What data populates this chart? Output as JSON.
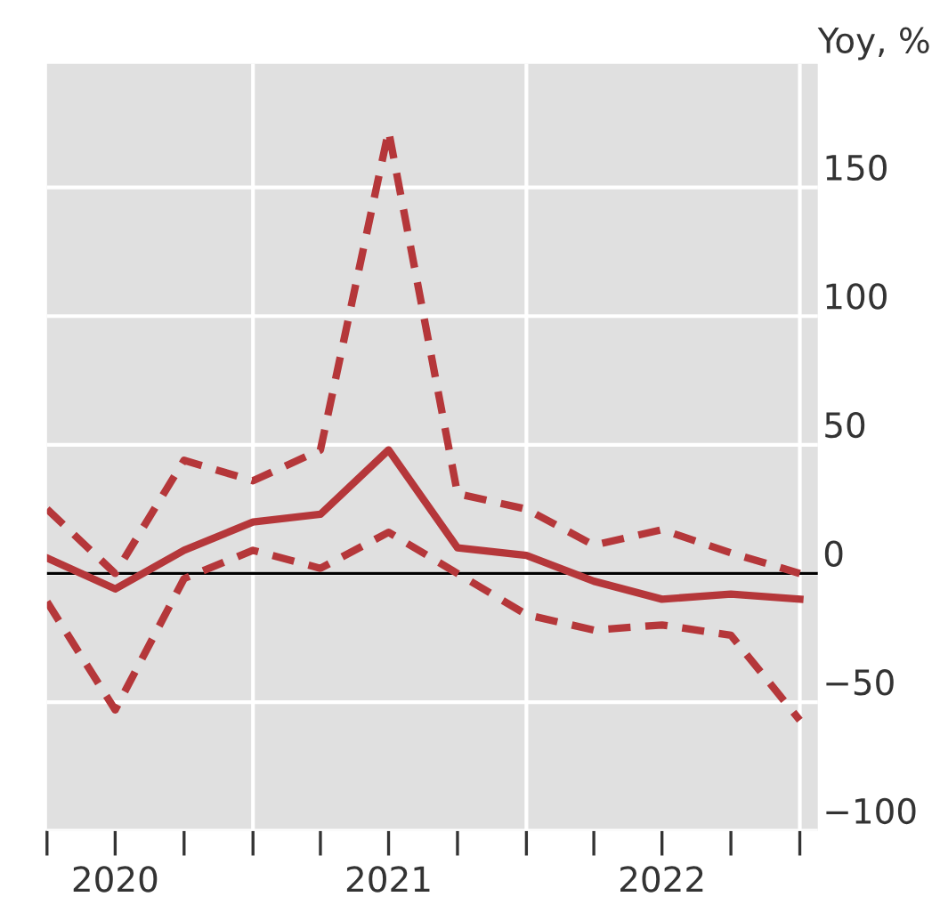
{
  "chart_data": {
    "type": "line",
    "ylabel": "Yoy, %",
    "x": [
      "2020-04-01",
      "2020-07-01",
      "2020-10-01",
      "2021-01-01",
      "2021-04-01",
      "2021-07-01",
      "2021-10-01",
      "2022-01-01",
      "2022-04-01",
      "2022-07-01",
      "2022-10-01",
      "2023-01-01"
    ],
    "series": [
      {
        "color": "#b5373a",
        "line_style": "solid",
        "values": [
          6,
          -6,
          9,
          20,
          23,
          48,
          10,
          7,
          -3,
          -10,
          -8,
          -10
        ]
      },
      {
        "color": "#b5373a",
        "line_style": "dashed",
        "values": [
          25,
          0,
          44,
          36,
          48,
          172,
          31,
          25,
          11,
          17,
          8,
          0
        ]
      },
      {
        "color": "#b5373a",
        "line_style": "dashed",
        "values": [
          -11,
          -53,
          -2,
          9,
          2,
          16,
          0,
          -16,
          -22,
          -20,
          -24,
          -57
        ]
      }
    ],
    "xlim": [
      "2020-04-01",
      "2023-01-25"
    ],
    "xticks": [
      {
        "value": "2020-04-01",
        "label": null
      },
      {
        "value": "2020-07-01",
        "label": "2020"
      },
      {
        "value": "2020-10-01",
        "label": null
      },
      {
        "value": "2021-01-01",
        "label": null
      },
      {
        "value": "2021-04-01",
        "label": null
      },
      {
        "value": "2021-07-01",
        "label": "2021"
      },
      {
        "value": "2021-10-01",
        "label": null
      },
      {
        "value": "2022-01-01",
        "label": null
      },
      {
        "value": "2022-04-01",
        "label": null
      },
      {
        "value": "2022-07-01",
        "label": "2022"
      },
      {
        "value": "2022-10-01",
        "label": null
      },
      {
        "value": "2023-01-01",
        "label": null
      }
    ],
    "ylim": [
      -100,
      198
    ],
    "yticks": [
      -100,
      -50,
      0,
      50,
      100,
      150
    ],
    "ref_lines": [
      {
        "axis": "y",
        "value": 0,
        "color": "#000000"
      }
    ],
    "grid": true
  }
}
